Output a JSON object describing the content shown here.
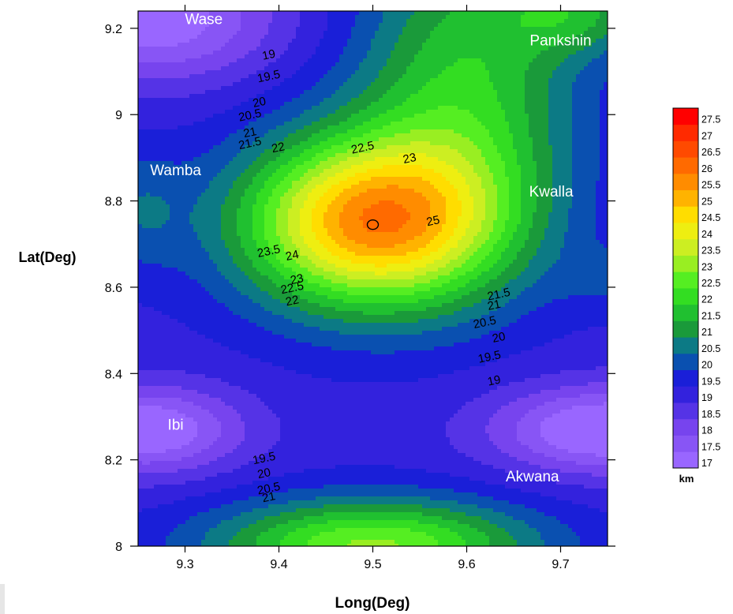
{
  "chart_data": {
    "type": "contour",
    "title": "",
    "xlabel": "Long(Deg)",
    "ylabel": "Lat(Deg)",
    "xlim": [
      9.25,
      9.75
    ],
    "ylim": [
      8.0,
      9.24
    ],
    "xticks": [
      "9.3",
      "9.4",
      "9.5",
      "9.6",
      "9.7"
    ],
    "yticks": [
      "8",
      "8.2",
      "8.4",
      "8.6",
      "8.8",
      "9",
      "9.2"
    ],
    "colorbar": {
      "unit": "km",
      "min": 17,
      "max": 27.5,
      "step": 0.5,
      "levels": [
        "17",
        "17.5",
        "18",
        "18.5",
        "19",
        "19.5",
        "20",
        "20.5",
        "21",
        "21.5",
        "22",
        "22.5",
        "23",
        "23.5",
        "24",
        "24.5",
        "25",
        "25.5",
        "26",
        "26.5",
        "27",
        "27.5"
      ],
      "colors": [
        "#9966ff",
        "#8855f5",
        "#7744ee",
        "#5533e6",
        "#3322dd",
        "#1a1fd8",
        "#0a50b0",
        "#0c7a85",
        "#1a9a3a",
        "#20c030",
        "#33dd22",
        "#55ee22",
        "#99ee22",
        "#ccee22",
        "#eeee11",
        "#ffdd00",
        "#ffb300",
        "#ff8c00",
        "#ff6a00",
        "#ff4a00",
        "#ff2a00",
        "#ff0000"
      ]
    },
    "peak": {
      "lon": 9.5,
      "lat": 8.745,
      "value": 25.5
    },
    "places": [
      {
        "name": "Wase",
        "lon": 9.32,
        "lat": 9.21
      },
      {
        "name": "Pankshin",
        "lon": 9.7,
        "lat": 9.16
      },
      {
        "name": "Wamba",
        "lon": 9.29,
        "lat": 8.86
      },
      {
        "name": "Kwalla",
        "lon": 9.69,
        "lat": 8.81
      },
      {
        "name": "Ibi",
        "lon": 9.29,
        "lat": 8.27
      },
      {
        "name": "Akwana",
        "lon": 9.67,
        "lat": 8.15
      }
    ],
    "contour_labels": [
      {
        "text": "19",
        "lon": 9.39,
        "lat": 9.13
      },
      {
        "text": "19.5",
        "lon": 9.39,
        "lat": 9.08
      },
      {
        "text": "20",
        "lon": 9.38,
        "lat": 9.02
      },
      {
        "text": "20.5",
        "lon": 9.37,
        "lat": 8.99
      },
      {
        "text": "21",
        "lon": 9.37,
        "lat": 8.95
      },
      {
        "text": "21.5",
        "lon": 9.37,
        "lat": 8.925
      },
      {
        "text": "22",
        "lon": 9.4,
        "lat": 8.915
      },
      {
        "text": "22.5",
        "lon": 9.49,
        "lat": 8.915
      },
      {
        "text": "23",
        "lon": 9.54,
        "lat": 8.89
      },
      {
        "text": "25",
        "lon": 9.565,
        "lat": 8.745
      },
      {
        "text": "23.5",
        "lon": 9.39,
        "lat": 8.675
      },
      {
        "text": "24",
        "lon": 9.415,
        "lat": 8.665
      },
      {
        "text": "23",
        "lon": 9.42,
        "lat": 8.61
      },
      {
        "text": "22.5",
        "lon": 9.415,
        "lat": 8.59
      },
      {
        "text": "22",
        "lon": 9.415,
        "lat": 8.56
      },
      {
        "text": "21.5",
        "lon": 9.635,
        "lat": 8.575
      },
      {
        "text": "21",
        "lon": 9.63,
        "lat": 8.55
      },
      {
        "text": "20.5",
        "lon": 9.62,
        "lat": 8.51
      },
      {
        "text": "20",
        "lon": 9.635,
        "lat": 8.475
      },
      {
        "text": "19.5",
        "lon": 9.625,
        "lat": 8.43
      },
      {
        "text": "19",
        "lon": 9.63,
        "lat": 8.375
      },
      {
        "text": "19.5",
        "lon": 9.385,
        "lat": 8.195
      },
      {
        "text": "20",
        "lon": 9.385,
        "lat": 8.16
      },
      {
        "text": "20.5",
        "lon": 9.39,
        "lat": 8.125
      },
      {
        "text": "21",
        "lon": 9.39,
        "lat": 8.105
      }
    ]
  }
}
